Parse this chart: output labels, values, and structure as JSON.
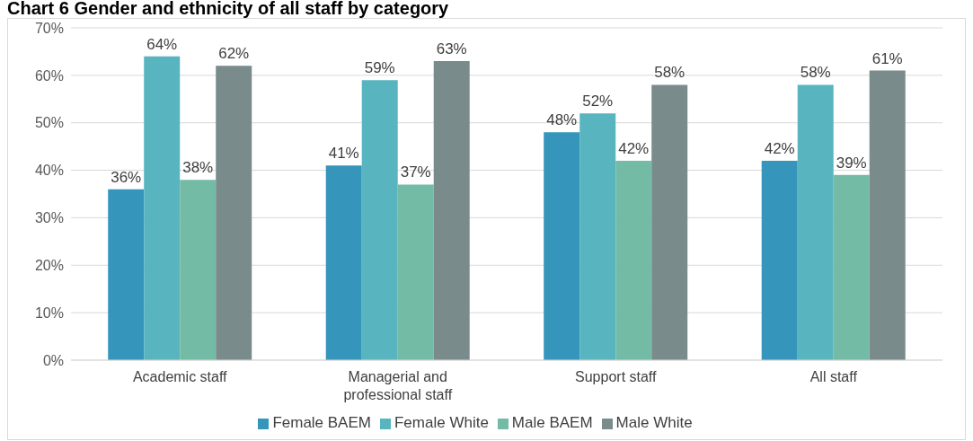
{
  "chart_data": {
    "type": "bar",
    "title": "Chart 6 Gender and ethnicity of all staff by category",
    "categories": [
      "Academic staff",
      "Managerial and professional staff",
      "Support staff",
      "All staff"
    ],
    "series": [
      {
        "name": "Female BAEM",
        "color": "#3695bb",
        "values": [
          36,
          41,
          48,
          42
        ],
        "value_labels": [
          "36%",
          "41%",
          "48%",
          "42%"
        ]
      },
      {
        "name": "Female White",
        "color": "#58b5c0",
        "values": [
          64,
          59,
          52,
          58
        ],
        "value_labels": [
          "64%",
          "59%",
          "52%",
          "58%"
        ]
      },
      {
        "name": "Male BAEM",
        "color": "#74bba5",
        "values": [
          38,
          37,
          42,
          39
        ],
        "value_labels": [
          "38%",
          "37%",
          "42%",
          "39%"
        ]
      },
      {
        "name": "Male White",
        "color": "#7a8b8c",
        "values": [
          62,
          63,
          58,
          61
        ],
        "value_labels": [
          "62%",
          "63%",
          "58%",
          "61%"
        ]
      }
    ],
    "ylim": [
      0,
      70
    ],
    "yticks": [
      {
        "value": 0,
        "label": "0%"
      },
      {
        "value": 10,
        "label": "10%"
      },
      {
        "value": 20,
        "label": "20%"
      },
      {
        "value": 30,
        "label": "30%"
      },
      {
        "value": 40,
        "label": "40%"
      },
      {
        "value": 50,
        "label": "50%"
      },
      {
        "value": 60,
        "label": "60%"
      },
      {
        "value": 70,
        "label": "70%"
      }
    ],
    "grid": "y",
    "legend": "bottom"
  }
}
